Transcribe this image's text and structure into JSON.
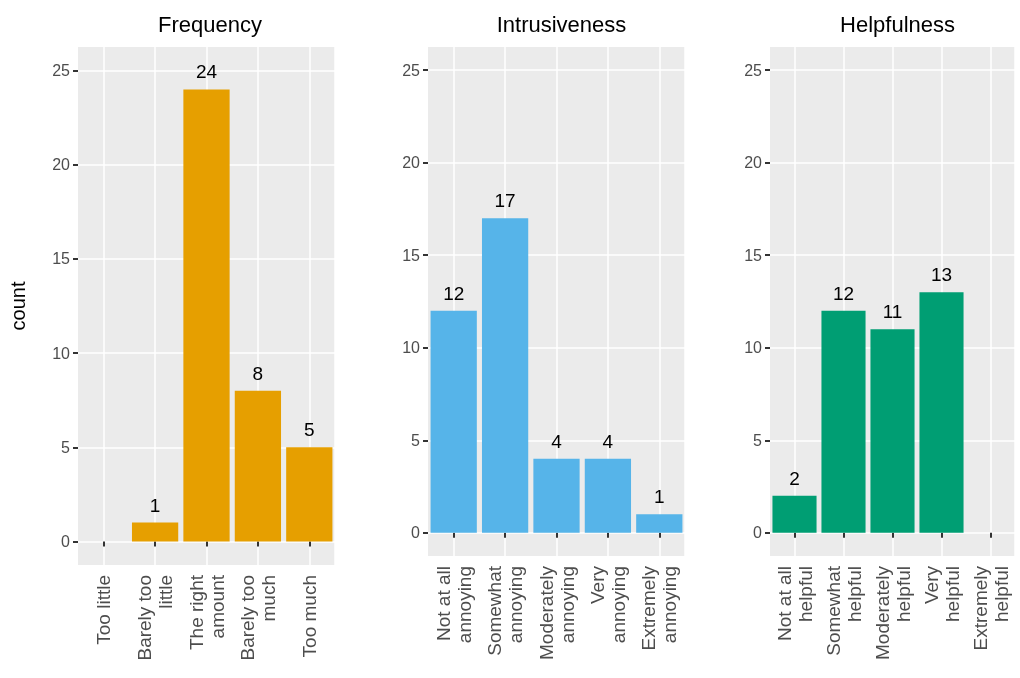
{
  "chart_data": [
    {
      "type": "bar",
      "title": "Frequency",
      "ylabel": "count",
      "categories": [
        "Too little",
        "Barely too\nlittle",
        "The right\namount",
        "Barely too\nmuch",
        "Too much"
      ],
      "series": [
        {
          "color": "#e69f00",
          "values": [
            0,
            1,
            24,
            8,
            5
          ],
          "value_labels": [
            null,
            "1",
            "24",
            "8",
            "5"
          ]
        }
      ],
      "ylim": [
        -1.25,
        26.25
      ],
      "yticks": [
        0,
        5,
        10,
        15,
        20,
        25
      ],
      "grid": true
    },
    {
      "type": "bar",
      "title": "Intrusiveness",
      "categories": [
        "Not at all\nannoying",
        "Somewhat\nannoying",
        "Moderately\nannoying",
        "Very\nannoying",
        "Extremely\nannoying"
      ],
      "series": [
        {
          "color": "#56b4e9",
          "values": [
            12,
            17,
            4,
            4,
            1
          ],
          "value_labels": [
            "12",
            "17",
            "4",
            "4",
            "1"
          ]
        }
      ],
      "ylim": [
        -1.25,
        26.25
      ],
      "yticks": [
        0,
        5,
        10,
        15,
        20,
        25
      ],
      "grid": true
    },
    {
      "type": "bar",
      "title": "Helpfulness",
      "categories": [
        "Not at all\nhelpful",
        "Somewhat\nhelpful",
        "Moderately\nhelpful",
        "Very\nhelpful",
        "Extremely\nhelpful"
      ],
      "series": [
        {
          "color": "#009e73",
          "values": [
            2,
            12,
            11,
            13,
            0
          ],
          "value_labels": [
            "2",
            "12",
            "11",
            "13",
            null
          ]
        }
      ],
      "ylim": [
        -1.25,
        26.25
      ],
      "yticks": [
        0,
        5,
        10,
        15,
        20,
        25
      ],
      "grid": true
    }
  ]
}
